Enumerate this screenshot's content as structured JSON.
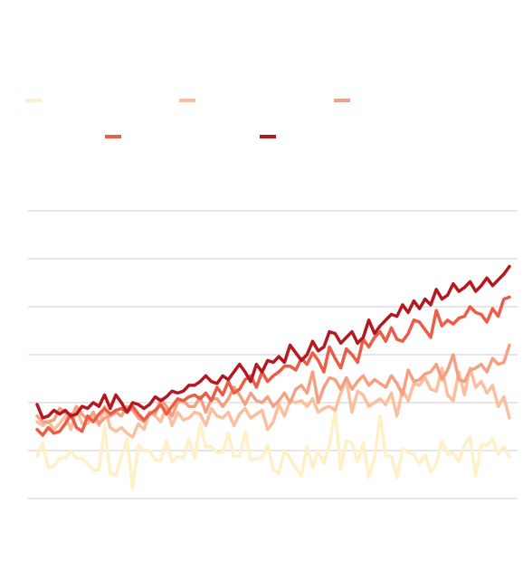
{
  "chart_data": {
    "type": "line",
    "title": "",
    "xlabel": "",
    "ylabel": "",
    "grid": true,
    "legend_placement": "top-left",
    "n_points": 85,
    "series": [
      {
        "name": "",
        "color": "#fff0c8",
        "values": [
          22,
          29,
          16,
          17,
          21,
          21,
          25,
          21,
          21,
          18,
          15,
          15,
          38,
          13,
          12,
          22,
          31,
          5,
          28,
          25,
          25,
          20,
          20,
          30,
          19,
          22,
          21,
          31,
          21,
          39,
          27,
          27,
          24,
          24,
          34,
          22,
          22,
          35,
          20,
          21,
          21,
          28,
          15,
          13,
          25,
          21,
          16,
          12,
          27,
          16,
          25,
          18,
          28,
          46,
          15,
          30,
          29,
          19,
          29,
          11,
          21,
          43,
          22,
          22,
          11,
          26,
          24,
          23,
          18,
          23,
          14,
          18,
          30,
          23,
          24,
          19,
          28,
          32,
          12,
          28,
          28,
          31,
          23,
          27,
          22
        ]
      },
      {
        "name": "",
        "color": "#fbbfa0",
        "values": [
          40,
          38,
          40,
          36,
          39,
          43,
          36,
          47,
          39,
          39,
          43,
          38,
          48,
          37,
          35,
          37,
          34,
          32,
          39,
          36,
          45,
          43,
          40,
          48,
          38,
          45,
          41,
          42,
          45,
          44,
          38,
          47,
          43,
          42,
          45,
          38,
          44,
          47,
          42,
          44,
          46,
          36,
          40,
          49,
          43,
          51,
          50,
          51,
          48,
          52,
          45,
          47,
          48,
          46,
          55,
          62,
          45,
          56,
          54,
          48,
          50,
          52,
          49,
          55,
          43,
          57,
          51,
          60,
          59,
          63,
          57,
          56,
          68,
          54,
          51,
          66,
          54,
          68,
          58,
          61,
          55,
          59,
          48,
          53,
          42
        ]
      },
      {
        "name": "",
        "color": "#f4a183",
        "values": [
          43,
          40,
          40,
          41,
          47,
          45,
          42,
          48,
          44,
          41,
          45,
          39,
          42,
          43,
          45,
          43,
          48,
          46,
          42,
          40,
          45,
          44,
          52,
          48,
          43,
          50,
          51,
          48,
          48,
          53,
          45,
          52,
          52,
          48,
          52,
          58,
          54,
          49,
          55,
          51,
          50,
          53,
          48,
          51,
          55,
          50,
          57,
          59,
          55,
          66,
          50,
          58,
          63,
          62,
          57,
          63,
          57,
          61,
          64,
          59,
          62,
          60,
          58,
          64,
          60,
          54,
          67,
          61,
          62,
          65,
          66,
          70,
          62,
          67,
          75,
          62,
          61,
          67,
          68,
          70,
          66,
          73,
          70,
          71,
          80
        ]
      },
      {
        "name": "",
        "color": "#ec5d47",
        "values": [
          36,
          33,
          37,
          34,
          35,
          39,
          44,
          37,
          35,
          43,
          40,
          44,
          47,
          44,
          46,
          47,
          45,
          48,
          44,
          41,
          44,
          46,
          49,
          44,
          48,
          52,
          51,
          53,
          54,
          52,
          55,
          51,
          58,
          54,
          61,
          55,
          57,
          62,
          64,
          58,
          66,
          61,
          64,
          66,
          69,
          69,
          67,
          73,
          70,
          76,
          72,
          66,
          79,
          73,
          68,
          78,
          75,
          71,
          83,
          79,
          84,
          87,
          82,
          89,
          83,
          82,
          86,
          93,
          92,
          88,
          84,
          98,
          90,
          93,
          91,
          94,
          95,
          100,
          97,
          96,
          92,
          99,
          95,
          104,
          105
        ]
      },
      {
        "name": "",
        "color": "#b5191f",
        "values": [
          49,
          42,
          43,
          46,
          44,
          46,
          43,
          44,
          48,
          47,
          50,
          48,
          54,
          47,
          54,
          50,
          45,
          50,
          49,
          47,
          49,
          53,
          51,
          53,
          56,
          55,
          56,
          59,
          59,
          61,
          64,
          61,
          60,
          64,
          62,
          66,
          70,
          66,
          61,
          70,
          66,
          72,
          71,
          74,
          71,
          80,
          76,
          72,
          75,
          82,
          77,
          79,
          87,
          86,
          81,
          84,
          87,
          81,
          84,
          93,
          86,
          90,
          93,
          96,
          95,
          101,
          97,
          103,
          99,
          104,
          101,
          109,
          104,
          106,
          112,
          108,
          110,
          113,
          108,
          111,
          115,
          111,
          114,
          117,
          121
        ]
      }
    ]
  }
}
